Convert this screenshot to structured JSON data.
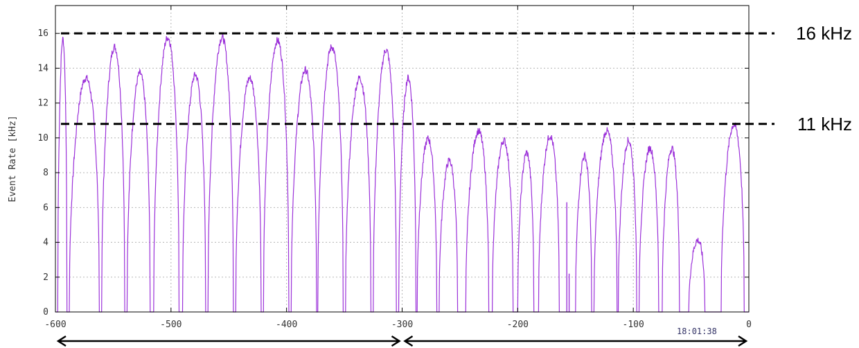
{
  "chart_data": {
    "type": "line",
    "title": "",
    "xlabel": "",
    "ylabel": "Event Rate [kHz]",
    "xlim": [
      -600,
      0
    ],
    "ylim": [
      0,
      17.6
    ],
    "x_ticks": [
      "-600",
      "-500",
      "-400",
      "-300",
      "-200",
      "-100",
      "0"
    ],
    "y_ticks": [
      "0",
      "2",
      "4",
      "6",
      "8",
      "10",
      "12",
      "14",
      "16"
    ],
    "grid": true,
    "timestamp": "18:01:38",
    "series_color": "#9b30d9",
    "reference_lines": [
      {
        "y": 16.0,
        "label": "16 kHz"
      },
      {
        "y": 10.8,
        "label": "11 kHz"
      }
    ],
    "range_arrows": [
      {
        "from": -600,
        "to": -300
      },
      {
        "from": -300,
        "to": 0
      }
    ],
    "pulses": [
      {
        "start": -598,
        "end": -590,
        "peak": 17.5
      },
      {
        "start": -588,
        "end": -562,
        "peak": 15.0
      },
      {
        "start": -560,
        "end": -540,
        "peak": 17.0
      },
      {
        "start": -538,
        "end": -518,
        "peak": 15.3
      },
      {
        "start": -515,
        "end": -493,
        "peak": 17.6
      },
      {
        "start": -490,
        "end": -470,
        "peak": 15.2
      },
      {
        "start": -468,
        "end": -446,
        "peak": 17.6
      },
      {
        "start": -444,
        "end": -422,
        "peak": 15.0
      },
      {
        "start": -420,
        "end": -398,
        "peak": 17.4
      },
      {
        "start": -396,
        "end": -374,
        "peak": 15.5
      },
      {
        "start": -373,
        "end": -351,
        "peak": 17.0
      },
      {
        "start": -349,
        "end": -327,
        "peak": 15.0
      },
      {
        "start": -325,
        "end": -305,
        "peak": 16.8
      },
      {
        "start": -303,
        "end": -288,
        "peak": 15.0
      },
      {
        "start": -287,
        "end": -270,
        "peak": 11.1
      },
      {
        "start": -268,
        "end": -252,
        "peak": 9.7
      },
      {
        "start": -245,
        "end": -225,
        "peak": 11.6
      },
      {
        "start": -222,
        "end": -204,
        "peak": 11.0
      },
      {
        "start": -200,
        "end": -186,
        "peak": 10.2
      },
      {
        "start": -182,
        "end": -164,
        "peak": 11.3
      },
      {
        "start": -150,
        "end": -136,
        "peak": 10.0
      },
      {
        "start": -134,
        "end": -114,
        "peak": 11.6
      },
      {
        "start": -113,
        "end": -97,
        "peak": 11.0
      },
      {
        "start": -95,
        "end": -78,
        "peak": 10.5
      },
      {
        "start": -75,
        "end": -60,
        "peak": 10.5
      },
      {
        "start": -52,
        "end": -38,
        "peak": 4.6
      },
      {
        "start": -24,
        "end": -4,
        "peak": 12.0
      }
    ],
    "spikes": [
      {
        "x": -157.5,
        "y": 6.3
      },
      {
        "x": -155.5,
        "y": 2.2
      }
    ]
  }
}
